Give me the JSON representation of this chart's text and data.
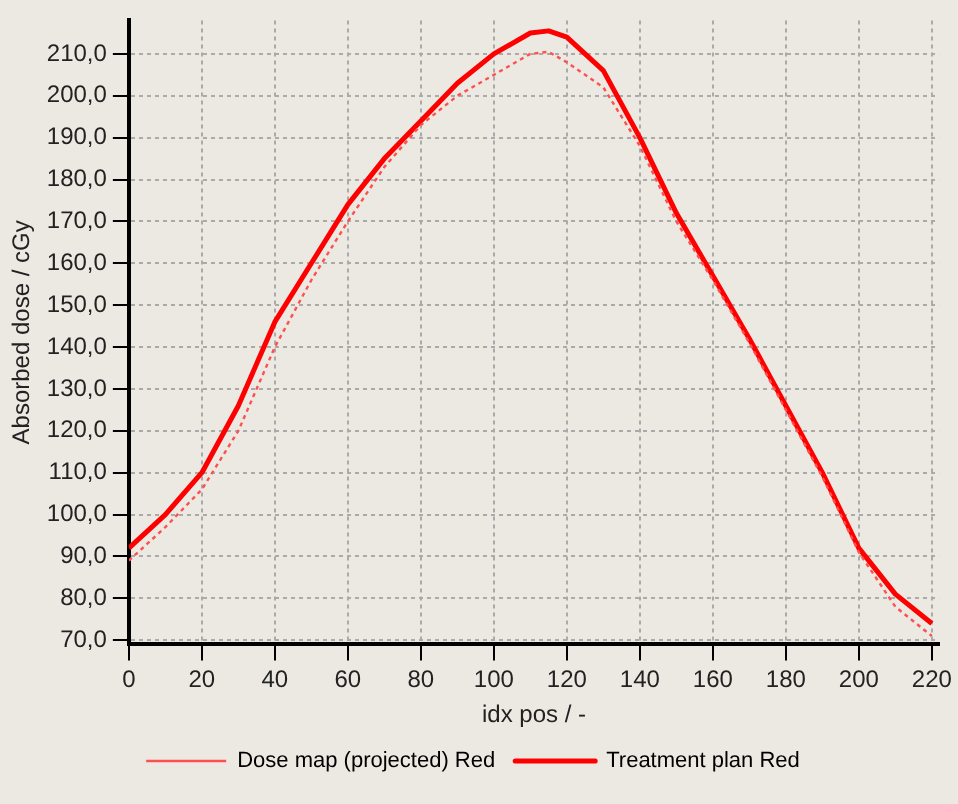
{
  "chart_data": {
    "type": "line",
    "xlabel": "idx pos / -",
    "ylabel": "Absorbed dose / cGy",
    "xlim": [
      0,
      222
    ],
    "xticks": [
      0,
      20,
      40,
      60,
      80,
      100,
      120,
      140,
      160,
      180,
      200,
      220
    ],
    "ylim": [
      69,
      218
    ],
    "yticks": [
      {
        "value": 70,
        "label": "70,0"
      },
      {
        "value": 80,
        "label": "80,0"
      },
      {
        "value": 90,
        "label": "90,0"
      },
      {
        "value": 100,
        "label": "100,0"
      },
      {
        "value": 110,
        "label": "110,0"
      },
      {
        "value": 120,
        "label": "120,0"
      },
      {
        "value": 130,
        "label": "130,0"
      },
      {
        "value": 140,
        "label": "140,0"
      },
      {
        "value": 150,
        "label": "150,0"
      },
      {
        "value": 160,
        "label": "160,0"
      },
      {
        "value": 170,
        "label": "170,0"
      },
      {
        "value": 180,
        "label": "180,0"
      },
      {
        "value": 190,
        "label": "190,0"
      },
      {
        "value": 200,
        "label": "200,0"
      },
      {
        "value": 210,
        "label": "210,0"
      }
    ],
    "grid": true,
    "legend": "bottom",
    "marker": "none",
    "series": [
      {
        "name": "Dose map (projected) Red",
        "color": "#ff5050",
        "line_style": "dotted",
        "x": [
          0,
          10,
          20,
          30,
          40,
          50,
          60,
          70,
          80,
          90,
          100,
          110,
          115,
          120,
          125,
          130,
          140,
          150,
          160,
          170,
          180,
          190,
          200,
          210,
          220
        ],
        "values": [
          89,
          97,
          106,
          120,
          140,
          156,
          170,
          183,
          193,
          200,
          205,
          210,
          210.5,
          208,
          205,
          202,
          188,
          170,
          156,
          141,
          125,
          109,
          91,
          78,
          71
        ]
      },
      {
        "name": "Treatment plan Red",
        "color": "#ff0000",
        "line_style": "solid",
        "x": [
          0,
          10,
          20,
          30,
          40,
          50,
          60,
          70,
          80,
          90,
          100,
          110,
          115,
          120,
          130,
          140,
          150,
          160,
          170,
          180,
          190,
          200,
          210,
          220
        ],
        "values": [
          92,
          100,
          110,
          126,
          146,
          160,
          174,
          185,
          194,
          203,
          210,
          215,
          215.5,
          214,
          206,
          190,
          172,
          157,
          142,
          126,
          110,
          92,
          81,
          74
        ]
      }
    ]
  }
}
